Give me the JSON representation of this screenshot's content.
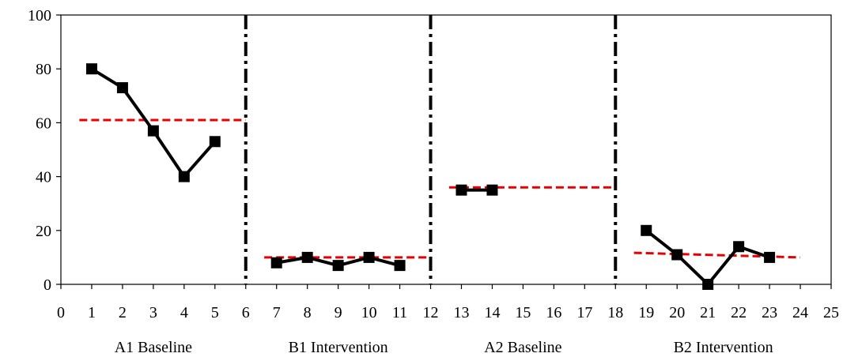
{
  "chart_data": {
    "type": "line",
    "xlim": [
      0,
      25
    ],
    "ylim": [
      0,
      100
    ],
    "x_ticks": [
      0,
      1,
      2,
      3,
      4,
      5,
      6,
      7,
      8,
      9,
      10,
      11,
      12,
      13,
      14,
      15,
      16,
      17,
      18,
      19,
      20,
      21,
      22,
      23,
      24,
      25
    ],
    "y_ticks": [
      0,
      20,
      40,
      60,
      80,
      100
    ],
    "grid": false,
    "legend": "none",
    "phase_labels": [
      {
        "label": "A1 Baseline",
        "x_center": 3
      },
      {
        "label": "B1 Intervention",
        "x_center": 9
      },
      {
        "label": "A2 Baseline",
        "x_center": 15
      },
      {
        "label": "B2 Intervention",
        "x_center": 21.5
      }
    ],
    "phase_dividers_x": [
      6,
      12,
      18
    ],
    "series": [
      {
        "segment": "A1",
        "x": [
          1,
          2,
          3,
          4,
          5
        ],
        "y": [
          80,
          73,
          57,
          40,
          53
        ]
      },
      {
        "segment": "B1",
        "x": [
          7,
          8,
          9,
          10,
          11
        ],
        "y": [
          8,
          10,
          7,
          10,
          7
        ]
      },
      {
        "segment": "A2",
        "x": [
          13,
          14
        ],
        "y": [
          35,
          35
        ]
      },
      {
        "segment": "B2",
        "x": [
          19,
          20,
          21,
          22,
          23
        ],
        "y": [
          20,
          11,
          0,
          14,
          10
        ]
      }
    ],
    "trend_lines": [
      {
        "segment": "A1",
        "x": [
          0.6,
          6
        ],
        "y": [
          61,
          61
        ]
      },
      {
        "segment": "B1",
        "x": [
          6.6,
          12
        ],
        "y": [
          10,
          10
        ]
      },
      {
        "segment": "A2",
        "x": [
          12.6,
          18
        ],
        "y": [
          36,
          36
        ]
      },
      {
        "segment": "B2",
        "x": [
          18.6,
          24
        ],
        "y": [
          11.7,
          10
        ]
      }
    ],
    "colors": {
      "data": "#000000",
      "trend": "#e60000",
      "divider": "#000000"
    }
  }
}
